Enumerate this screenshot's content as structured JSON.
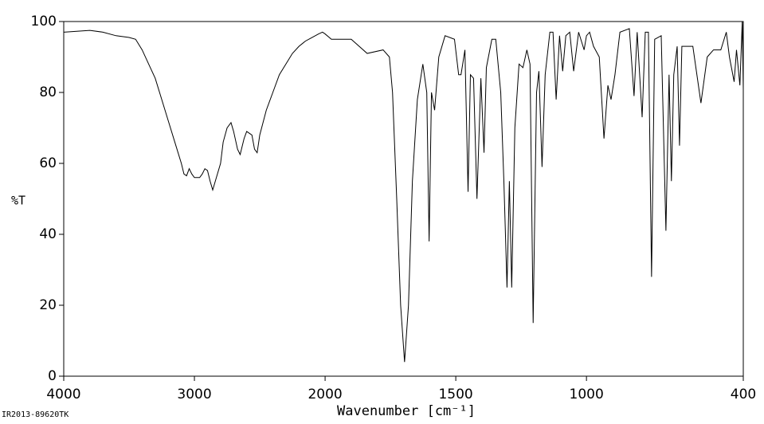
{
  "chart_data": {
    "type": "line",
    "ylabel": "%T",
    "xlabel": "Wavenumber [cm⁻¹]",
    "footer": "IR2013-89620TK",
    "xlim": [
      4000,
      400
    ],
    "xticks": [
      4000,
      3000,
      2000,
      1500,
      1000,
      400
    ],
    "x_expansion": {
      "below": 2000,
      "factor": 2
    },
    "ylim": [
      0,
      100
    ],
    "yticks": [
      0,
      20,
      40,
      60,
      80,
      100
    ],
    "color": "#000000",
    "x": [
      4000,
      3800,
      3700,
      3600,
      3500,
      3450,
      3400,
      3350,
      3300,
      3250,
      3200,
      3150,
      3100,
      3080,
      3060,
      3040,
      3020,
      3000,
      2960,
      2940,
      2920,
      2900,
      2880,
      2860,
      2840,
      2800,
      2780,
      2750,
      2720,
      2700,
      2670,
      2650,
      2620,
      2600,
      2560,
      2540,
      2520,
      2500,
      2450,
      2400,
      2350,
      2300,
      2250,
      2200,
      2150,
      2100,
      2050,
      2020,
      2000,
      1976,
      1900,
      1839,
      1778,
      1754,
      1742,
      1726,
      1711,
      1696,
      1681,
      1666,
      1647,
      1626,
      1611,
      1602,
      1593,
      1581,
      1565,
      1541,
      1505,
      1489,
      1480,
      1465,
      1453,
      1444,
      1432,
      1419,
      1404,
      1392,
      1383,
      1362,
      1347,
      1328,
      1316,
      1304,
      1295,
      1286,
      1274,
      1258,
      1243,
      1228,
      1216,
      1204,
      1191,
      1182,
      1170,
      1158,
      1140,
      1128,
      1116,
      1103,
      1091,
      1079,
      1064,
      1049,
      1030,
      1009,
      1000,
      988,
      973,
      951,
      933,
      918,
      906,
      891,
      872,
      836,
      818,
      806,
      787,
      775,
      763,
      751,
      739,
      714,
      696,
      684,
      675,
      666,
      653,
      644,
      635,
      593,
      562,
      538,
      514,
      486,
      465,
      453,
      435,
      426,
      413,
      404,
      400
    ],
    "values": [
      97,
      97.5,
      97,
      96,
      95.5,
      95,
      92,
      88,
      84,
      78,
      72,
      66,
      60,
      57,
      56.5,
      58.5,
      57,
      56,
      56,
      57,
      58.5,
      58,
      55,
      52.5,
      55,
      60,
      66,
      70,
      71.5,
      69,
      64,
      62.5,
      67,
      69,
      68,
      64,
      63,
      68,
      75,
      80,
      85,
      88,
      91,
      93,
      94.5,
      95.5,
      96.5,
      97,
      96.5,
      95,
      95,
      91,
      92,
      90,
      80,
      50,
      20,
      4,
      20,
      55,
      78,
      88,
      80,
      38,
      80,
      75,
      90,
      96,
      95,
      85,
      85,
      92,
      52,
      85,
      84,
      50,
      84,
      63,
      87,
      95,
      95,
      80,
      55,
      25,
      55,
      25,
      70,
      88,
      87,
      92,
      88,
      15,
      80,
      86,
      59,
      85,
      97,
      97,
      78,
      96,
      86,
      96,
      97,
      86,
      97,
      92,
      96,
      97,
      93,
      90,
      67,
      82,
      78,
      85,
      97,
      98,
      79,
      97,
      73,
      97,
      97,
      28,
      95,
      96,
      41,
      85,
      55,
      85,
      93,
      65,
      93,
      93,
      77,
      90,
      92,
      92,
      97,
      90,
      83,
      92,
      82,
      100,
      81
    ]
  }
}
